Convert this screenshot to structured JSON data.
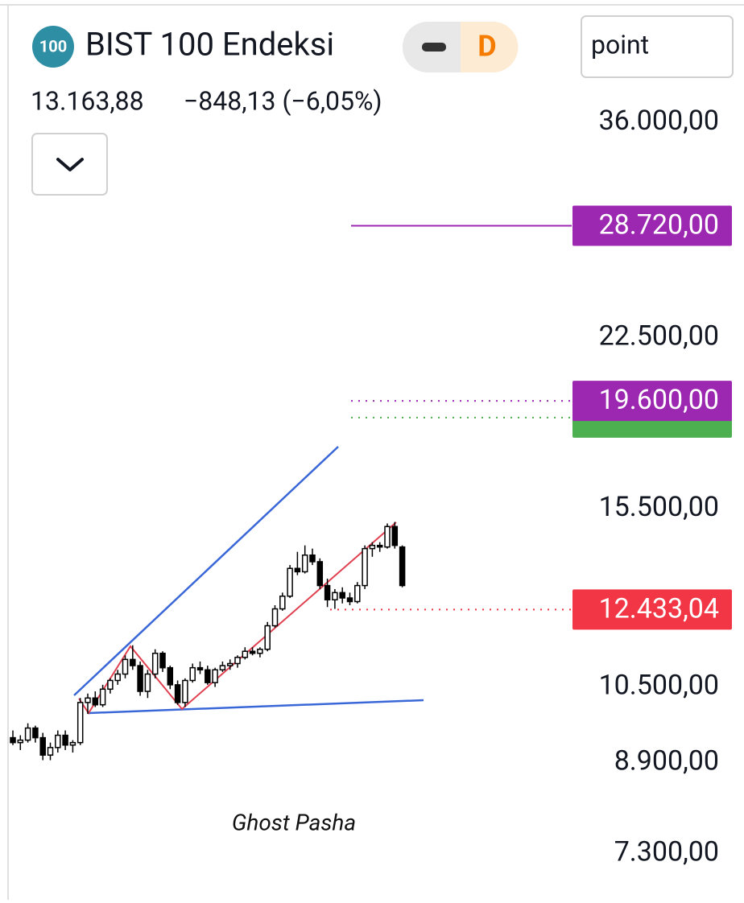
{
  "header": {
    "icon": "100",
    "title": "BIST 100 Endeksi",
    "badge": "D",
    "price": "13.163,88",
    "change": "−848,13 (−6,05%)"
  },
  "toolbar": {
    "unit": "point"
  },
  "chart_data": {
    "type": "candlestick",
    "log_scale": true,
    "ylim": [
      6600,
      47000
    ],
    "yticks": [
      {
        "value": 36000,
        "label": "36.000,00"
      },
      {
        "value": 22500,
        "label": "22.500,00"
      },
      {
        "value": 15500,
        "label": "15.500,00"
      },
      {
        "value": 10500,
        "label": "10.500,00"
      },
      {
        "value": 8900,
        "label": "8.900,00"
      },
      {
        "value": 7300,
        "label": "7.300,00"
      }
    ],
    "up_color": "#ffffff",
    "down_color": "#000000",
    "candles": [
      [
        9400,
        9550,
        9250,
        9300
      ],
      [
        9300,
        9450,
        9150,
        9350
      ],
      [
        9350,
        9700,
        9300,
        9600
      ],
      [
        9600,
        9650,
        9300,
        9400
      ],
      [
        9400,
        9500,
        8950,
        9050
      ],
      [
        9050,
        9300,
        8950,
        9200
      ],
      [
        9200,
        9550,
        9100,
        9450
      ],
      [
        9450,
        9550,
        9150,
        9250
      ],
      [
        9250,
        9350,
        9100,
        9300
      ],
      [
        9300,
        10250,
        9250,
        10150
      ],
      [
        10150,
        10350,
        9900,
        10250
      ],
      [
        10250,
        10400,
        10050,
        10100
      ],
      [
        10100,
        10550,
        10050,
        10450
      ],
      [
        10450,
        10700,
        10350,
        10650
      ],
      [
        10650,
        10900,
        10550,
        10800
      ],
      [
        10800,
        11250,
        10700,
        11150
      ],
      [
        11150,
        11500,
        10900,
        11000
      ],
      [
        11000,
        11100,
        10300,
        10400
      ],
      [
        10400,
        10900,
        10250,
        10800
      ],
      [
        10800,
        11400,
        10700,
        11300
      ],
      [
        11300,
        11350,
        10850,
        10950
      ],
      [
        10950,
        11000,
        10450,
        10550
      ],
      [
        10550,
        10650,
        10100,
        10150
      ],
      [
        10150,
        10700,
        10050,
        10650
      ],
      [
        10650,
        11050,
        10600,
        10950
      ],
      [
        10950,
        11100,
        10800,
        10900
      ],
      [
        10900,
        11000,
        10550,
        10600
      ],
      [
        10600,
        10950,
        10500,
        10900
      ],
      [
        10900,
        11100,
        10850,
        11000
      ],
      [
        11000,
        11150,
        10900,
        11050
      ],
      [
        11050,
        11250,
        10950,
        11200
      ],
      [
        11200,
        11450,
        11150,
        11350
      ],
      [
        11350,
        11450,
        11250,
        11300
      ],
      [
        11300,
        11450,
        11200,
        11400
      ],
      [
        11400,
        12100,
        11350,
        12000
      ],
      [
        12000,
        12550,
        11950,
        12450
      ],
      [
        12450,
        12900,
        12400,
        12800
      ],
      [
        12800,
        13700,
        12750,
        13600
      ],
      [
        13600,
        14100,
        13400,
        13500
      ],
      [
        13500,
        14300,
        13450,
        14000
      ],
      [
        14000,
        14200,
        13700,
        13800
      ],
      [
        13800,
        13900,
        13000,
        13100
      ],
      [
        13100,
        13300,
        12500,
        12700
      ],
      [
        12700,
        13000,
        12450,
        12900
      ],
      [
        12900,
        13050,
        12600,
        12750
      ],
      [
        12750,
        12900,
        12550,
        12650
      ],
      [
        12650,
        13200,
        12600,
        13100
      ],
      [
        13100,
        14300,
        13000,
        14200
      ],
      [
        14200,
        14400,
        13950,
        14300
      ],
      [
        14300,
        14400,
        14100,
        14250
      ],
      [
        14250,
        15000,
        14200,
        14900
      ],
      [
        14900,
        15050,
        14200,
        14300
      ],
      [
        14250,
        14300,
        13050,
        13100
      ]
    ],
    "levels": [
      {
        "value": 28720,
        "label": "28.720,00",
        "color": "#9c27b0",
        "style": "solid"
      },
      {
        "value": 18900,
        "color": "#4caf50",
        "style": "dotted"
      },
      {
        "value": 19600,
        "label": "19.600,00",
        "color": "#9c27b0",
        "style": "dotted"
      },
      {
        "value": 12433.04,
        "label": "12.433,04",
        "color": "#f23645",
        "style": "dotted"
      }
    ],
    "watermark": "Ghost Pasha"
  }
}
